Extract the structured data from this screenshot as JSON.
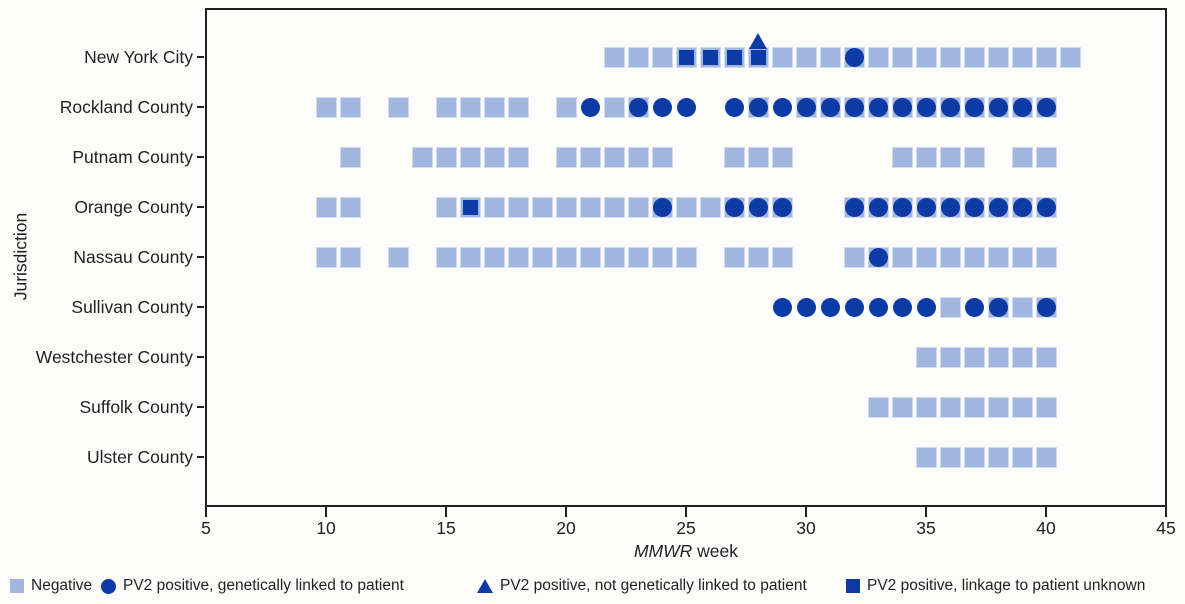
{
  "colors": {
    "background": "#fcfdfb",
    "negative_fill": "#a3b6e0",
    "negative_border": "#d2dcf1",
    "positive_fill": "#0d3ba6",
    "axis": "#231f20",
    "text": "#231f20"
  },
  "chart_data": {
    "type": "scatter",
    "title": "",
    "xlabel_italic": "MMWR",
    "xlabel_rest": " week",
    "ylabel": "Jurisdiction",
    "x_range": [
      5,
      45
    ],
    "x_ticks": [
      5,
      10,
      15,
      20,
      25,
      30,
      35,
      40,
      45
    ],
    "grid": false,
    "marker_type_meaning": {
      "N": "Negative (light blue square)",
      "C": "PV2 positive, genetically linked to patient (dark blue circle)",
      "CN": "PV2 positive circle overlaid on negative square",
      "SN": "PV2 positive, linkage to patient unknown (dark square) overlaid on negative square",
      "SNT": "PV2 positive dark square on negative square plus triangle (not genetically linked) above"
    },
    "rows": [
      {
        "jurisdiction": "New York City",
        "markers": [
          [
            22,
            "N"
          ],
          [
            23,
            "N"
          ],
          [
            24,
            "N"
          ],
          [
            25,
            "SN"
          ],
          [
            26,
            "SN"
          ],
          [
            27,
            "SN"
          ],
          [
            28,
            "SNT"
          ],
          [
            29,
            "N"
          ],
          [
            30,
            "N"
          ],
          [
            31,
            "N"
          ],
          [
            32,
            "CN"
          ],
          [
            33,
            "N"
          ],
          [
            34,
            "N"
          ],
          [
            35,
            "N"
          ],
          [
            36,
            "N"
          ],
          [
            37,
            "N"
          ],
          [
            38,
            "N"
          ],
          [
            39,
            "N"
          ],
          [
            40,
            "N"
          ],
          [
            41,
            "N"
          ]
        ]
      },
      {
        "jurisdiction": "Rockland County",
        "markers": [
          [
            10,
            "N"
          ],
          [
            11,
            "N"
          ],
          [
            13,
            "N"
          ],
          [
            15,
            "N"
          ],
          [
            16,
            "N"
          ],
          [
            17,
            "N"
          ],
          [
            18,
            "N"
          ],
          [
            20,
            "N"
          ],
          [
            21,
            "C"
          ],
          [
            22,
            "N"
          ],
          [
            23,
            "CN"
          ],
          [
            24,
            "C"
          ],
          [
            25,
            "C"
          ],
          [
            27,
            "C"
          ],
          [
            28,
            "CN"
          ],
          [
            29,
            "C"
          ],
          [
            30,
            "CN"
          ],
          [
            31,
            "CN"
          ],
          [
            32,
            "CN"
          ],
          [
            33,
            "CN"
          ],
          [
            34,
            "CN"
          ],
          [
            35,
            "CN"
          ],
          [
            36,
            "CN"
          ],
          [
            37,
            "CN"
          ],
          [
            38,
            "CN"
          ],
          [
            39,
            "CN"
          ],
          [
            40,
            "CN"
          ]
        ]
      },
      {
        "jurisdiction": "Putnam County",
        "markers": [
          [
            11,
            "N"
          ],
          [
            14,
            "N"
          ],
          [
            15,
            "N"
          ],
          [
            16,
            "N"
          ],
          [
            17,
            "N"
          ],
          [
            18,
            "N"
          ],
          [
            20,
            "N"
          ],
          [
            21,
            "N"
          ],
          [
            22,
            "N"
          ],
          [
            23,
            "N"
          ],
          [
            24,
            "N"
          ],
          [
            27,
            "N"
          ],
          [
            28,
            "N"
          ],
          [
            29,
            "N"
          ],
          [
            34,
            "N"
          ],
          [
            35,
            "N"
          ],
          [
            36,
            "N"
          ],
          [
            37,
            "N"
          ],
          [
            39,
            "N"
          ],
          [
            40,
            "N"
          ]
        ]
      },
      {
        "jurisdiction": "Orange County",
        "markers": [
          [
            10,
            "N"
          ],
          [
            11,
            "N"
          ],
          [
            15,
            "N"
          ],
          [
            16,
            "SN"
          ],
          [
            17,
            "N"
          ],
          [
            18,
            "N"
          ],
          [
            19,
            "N"
          ],
          [
            20,
            "N"
          ],
          [
            21,
            "N"
          ],
          [
            22,
            "N"
          ],
          [
            23,
            "N"
          ],
          [
            24,
            "CN"
          ],
          [
            25,
            "N"
          ],
          [
            26,
            "N"
          ],
          [
            27,
            "CN"
          ],
          [
            28,
            "CN"
          ],
          [
            29,
            "CN"
          ],
          [
            32,
            "CN"
          ],
          [
            33,
            "CN"
          ],
          [
            34,
            "CN"
          ],
          [
            35,
            "CN"
          ],
          [
            36,
            "CN"
          ],
          [
            37,
            "CN"
          ],
          [
            38,
            "CN"
          ],
          [
            39,
            "CN"
          ],
          [
            40,
            "CN"
          ]
        ]
      },
      {
        "jurisdiction": "Nassau County",
        "markers": [
          [
            10,
            "N"
          ],
          [
            11,
            "N"
          ],
          [
            13,
            "N"
          ],
          [
            15,
            "N"
          ],
          [
            16,
            "N"
          ],
          [
            17,
            "N"
          ],
          [
            18,
            "N"
          ],
          [
            19,
            "N"
          ],
          [
            20,
            "N"
          ],
          [
            21,
            "N"
          ],
          [
            22,
            "N"
          ],
          [
            23,
            "N"
          ],
          [
            24,
            "N"
          ],
          [
            25,
            "N"
          ],
          [
            27,
            "N"
          ],
          [
            28,
            "N"
          ],
          [
            29,
            "N"
          ],
          [
            32,
            "N"
          ],
          [
            33,
            "CN"
          ],
          [
            34,
            "N"
          ],
          [
            35,
            "N"
          ],
          [
            36,
            "N"
          ],
          [
            37,
            "N"
          ],
          [
            38,
            "N"
          ],
          [
            39,
            "N"
          ],
          [
            40,
            "N"
          ]
        ]
      },
      {
        "jurisdiction": "Sullivan County",
        "markers": [
          [
            29,
            "C"
          ],
          [
            30,
            "C"
          ],
          [
            31,
            "C"
          ],
          [
            32,
            "C"
          ],
          [
            33,
            "C"
          ],
          [
            34,
            "C"
          ],
          [
            35,
            "C"
          ],
          [
            36,
            "N"
          ],
          [
            37,
            "C"
          ],
          [
            38,
            "CN"
          ],
          [
            39,
            "N"
          ],
          [
            40,
            "CN"
          ]
        ]
      },
      {
        "jurisdiction": "Westchester County",
        "markers": [
          [
            35,
            "N"
          ],
          [
            36,
            "N"
          ],
          [
            37,
            "N"
          ],
          [
            38,
            "N"
          ],
          [
            39,
            "N"
          ],
          [
            40,
            "N"
          ]
        ]
      },
      {
        "jurisdiction": "Suffolk County",
        "markers": [
          [
            33,
            "N"
          ],
          [
            34,
            "N"
          ],
          [
            35,
            "N"
          ],
          [
            36,
            "N"
          ],
          [
            37,
            "N"
          ],
          [
            38,
            "N"
          ],
          [
            39,
            "N"
          ],
          [
            40,
            "N"
          ]
        ]
      },
      {
        "jurisdiction": "Ulster County",
        "markers": [
          [
            35,
            "N"
          ],
          [
            36,
            "N"
          ],
          [
            37,
            "N"
          ],
          [
            38,
            "N"
          ],
          [
            39,
            "N"
          ],
          [
            40,
            "N"
          ]
        ]
      }
    ]
  },
  "legend": {
    "items": [
      {
        "marker": "negative-square",
        "label": "Negative"
      },
      {
        "marker": "positive-circle",
        "label": "PV2 positive, genetically linked to patient"
      },
      {
        "marker": "positive-triangle",
        "label": "PV2 positive, not genetically linked to patient"
      },
      {
        "marker": "positive-square",
        "label": "PV2 positive, linkage to patient unknown"
      }
    ]
  }
}
